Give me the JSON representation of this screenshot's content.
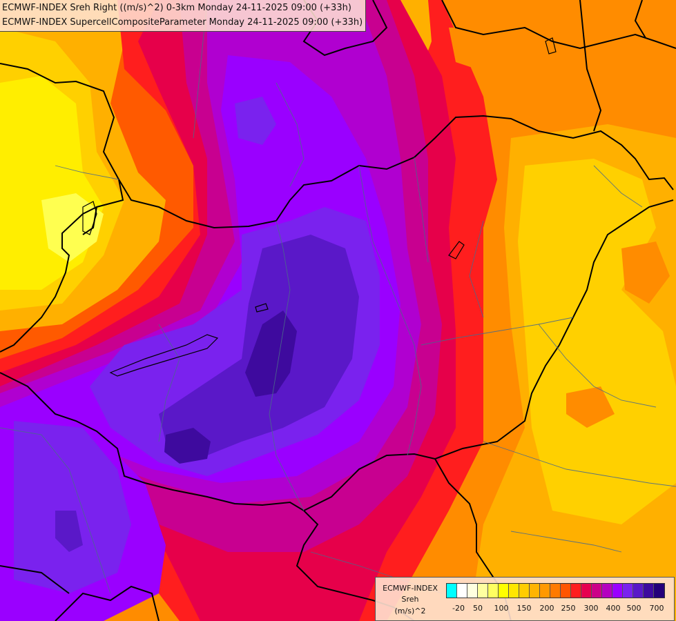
{
  "title_lines": [
    "ECMWF-INDEX Sreh Right ((m/s)^2) 0-3km Monday 24-11-2025 09:00 (+33h)",
    "ECMWF-INDEX SupercellCompositeParameter Monday 24-11-2025 09:00 (+33h)"
  ],
  "legend": {
    "source": "ECMWF-INDEX",
    "variable": "Sreh",
    "unit": "(m/s)^2",
    "colors": [
      "#00ffff",
      "#ffffff",
      "#ffffe0",
      "#ffffa0",
      "#ffff60",
      "#ffff00",
      "#ffe600",
      "#ffcc00",
      "#ffb400",
      "#ff9900",
      "#ff7a00",
      "#ff5500",
      "#ff1e1e",
      "#e60050",
      "#cc0088",
      "#b400c0",
      "#9a00ff",
      "#7a22ee",
      "#5a18c8",
      "#3e0a9e",
      "#24007a"
    ],
    "ticks": [
      "-20",
      "50",
      "100",
      "150",
      "200",
      "250",
      "300",
      "400",
      "500",
      "700"
    ]
  },
  "field_colors": {
    "yellow_light": "#ffff50",
    "yellow": "#ffee00",
    "gold": "#ffd000",
    "amber": "#ffb000",
    "orange": "#ff8c00",
    "orange_red": "#ff5a00",
    "red": "#ff1e1e",
    "crimson": "#e6004a",
    "magenta": "#c80090",
    "purple": "#b000d0",
    "violet": "#9a00ff",
    "blue_violet": "#7a22ee",
    "indigo": "#5a18c8",
    "deep_indigo": "#3e0a9e"
  }
}
